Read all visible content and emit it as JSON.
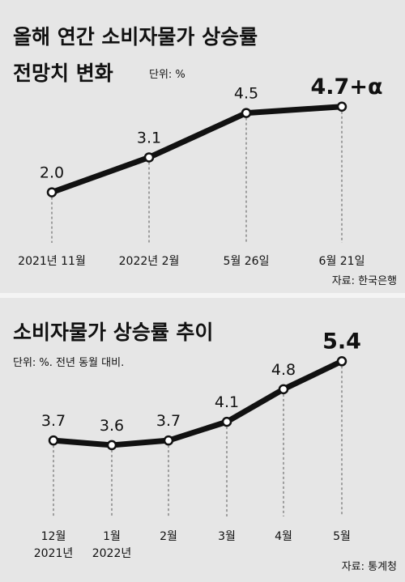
{
  "chart_data": [
    {
      "type": "line",
      "title_line1": "올해 연간 소비자물가 상승률",
      "title_line2": "전망치 변화",
      "unit": "단위: %",
      "source": "자료: 한국은행",
      "categories": [
        "2021년 11월",
        "2022년 2월",
        "5월 26일",
        "6월 21일"
      ],
      "values": [
        2.0,
        3.1,
        4.5,
        4.7
      ],
      "value_labels": [
        "2.0",
        "3.1",
        "4.5",
        "4.7+α"
      ],
      "ylim": [
        1.3,
        5.0
      ]
    },
    {
      "type": "line",
      "title": "소비자물가 상승률 추이",
      "unit": "단위: %. 전년 동월 대비.",
      "source": "자료: 통계청",
      "categories": [
        [
          "12월",
          "2021년"
        ],
        [
          "1월",
          "2022년"
        ],
        [
          "2월",
          ""
        ],
        [
          "3월",
          ""
        ],
        [
          "4월",
          ""
        ],
        [
          "5월",
          ""
        ]
      ],
      "values": [
        3.7,
        3.6,
        3.7,
        4.1,
        4.8,
        5.4
      ],
      "value_labels": [
        "3.7",
        "3.6",
        "3.7",
        "4.1",
        "4.8",
        "5.4"
      ],
      "ylim": [
        2.8,
        5.7
      ]
    }
  ],
  "colors": {
    "background": "#e6e6e6",
    "line": "#111111",
    "marker_fill": "#ffffff",
    "guide": "#555555"
  }
}
